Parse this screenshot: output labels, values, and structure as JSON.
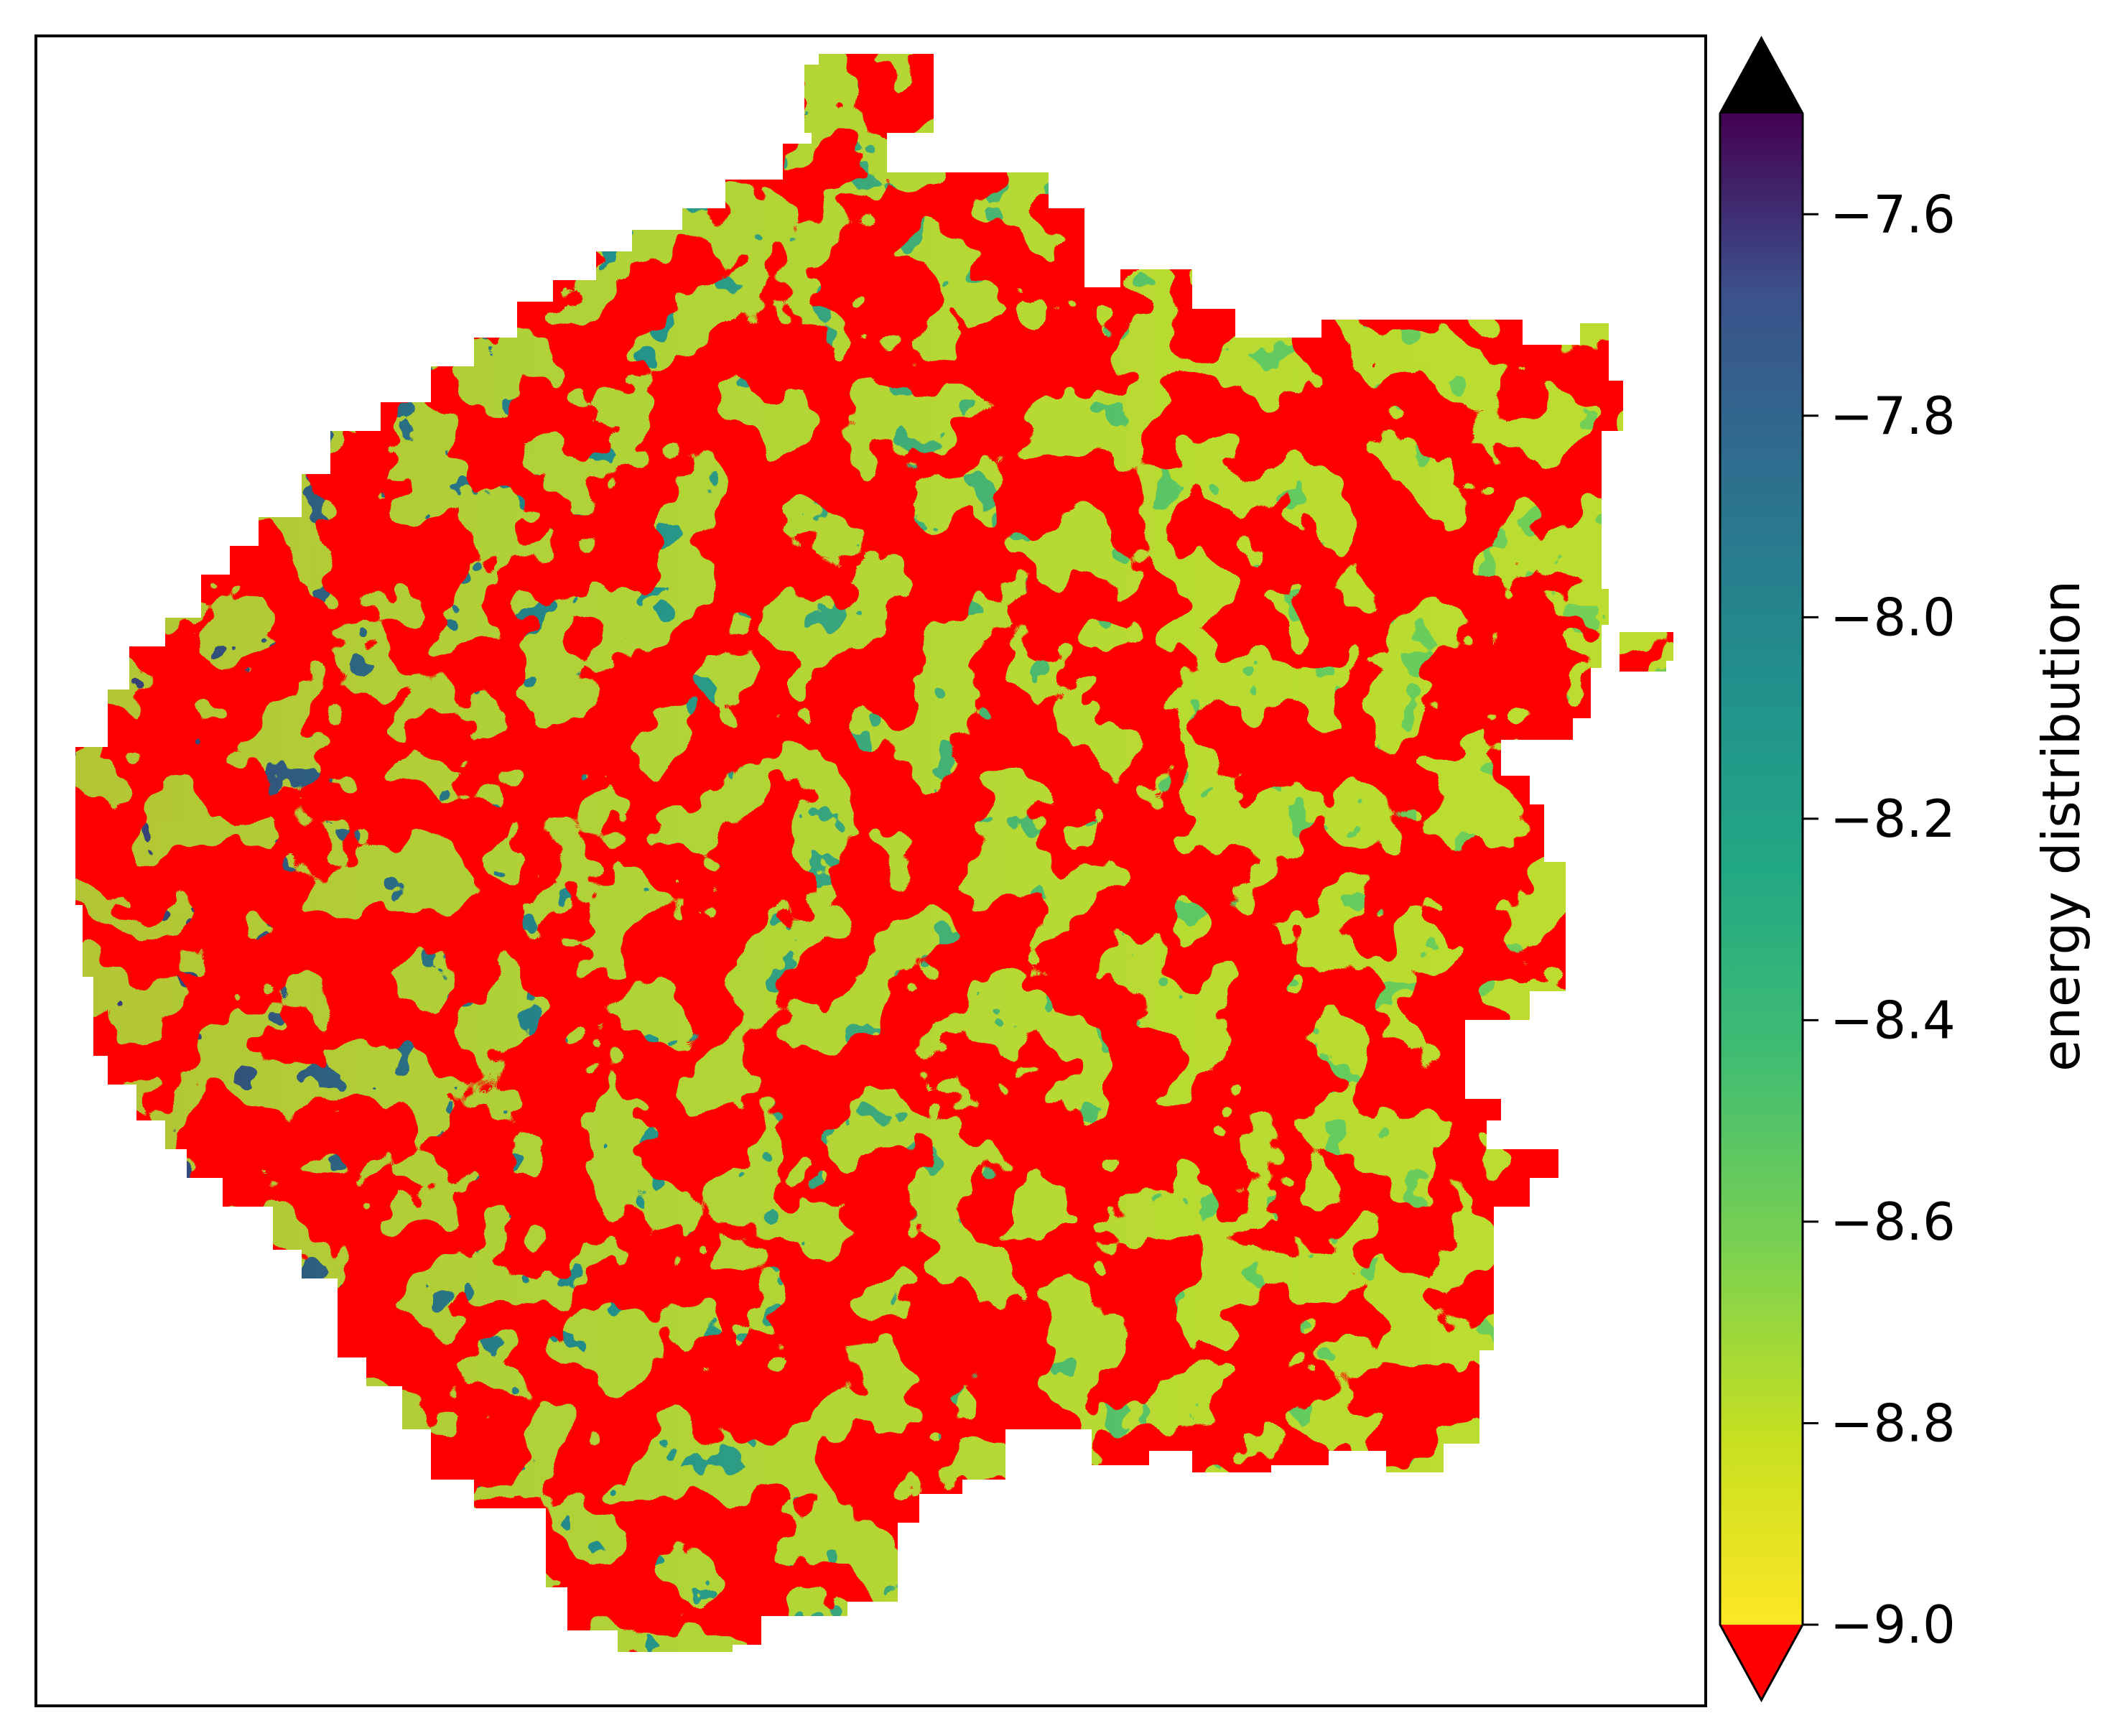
{
  "chart_data": {
    "type": "heatmap",
    "title": "",
    "xlabel": "",
    "ylabel": "",
    "x_ticks_visible": false,
    "y_ticks_visible": false,
    "colormap": "viridis_r",
    "colorbar": {
      "label": "energy distribution",
      "range": [
        -9.0,
        -7.5
      ],
      "ticks": [
        -7.6,
        -7.8,
        -8.0,
        -8.2,
        -8.4,
        -8.6,
        -8.8,
        -9.0
      ],
      "tick_labels": [
        "−7.6",
        "−7.8",
        "−8.0",
        "−8.2",
        "−8.4",
        "−8.6",
        "−8.8",
        "−9.0"
      ],
      "extend_low_color": "#ff0000",
      "extend_high_color": "#000000",
      "placement": "right"
    },
    "colors": {
      "under": "#ff0000",
      "over": "#000000",
      "low_end": "#fde725",
      "mid": "#21918c",
      "high_end": "#440154"
    },
    "map": {
      "region": "irregular blob-shaped domain, white outside",
      "dominant_regions": {
        "below_min_red": "right half and bottom-center",
        "above_max_black": "left portion"
      }
    }
  }
}
